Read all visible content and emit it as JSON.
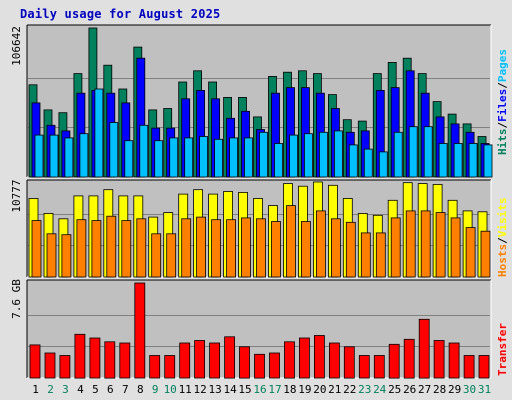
{
  "chart_data": [
    {
      "type": "bar",
      "title": "Daily usage for August 2025",
      "ymax_label": "106642",
      "legend": [
        {
          "name": "Hits",
          "color": "#00805c"
        },
        {
          "name": "Files",
          "color": "#0000ff"
        },
        {
          "name": "Pages",
          "color": "#00c0ff"
        }
      ],
      "categories": [
        "1",
        "2",
        "3",
        "4",
        "5",
        "6",
        "7",
        "8",
        "9",
        "10",
        "11",
        "12",
        "13",
        "14",
        "15",
        "16",
        "17",
        "18",
        "19",
        "20",
        "21",
        "22",
        "23",
        "24",
        "25",
        "26",
        "27",
        "28",
        "29",
        "30",
        "31"
      ],
      "series": [
        {
          "name": "Hits",
          "values": [
            66000,
            48000,
            46000,
            74000,
            106642,
            80000,
            63000,
            93000,
            48000,
            49000,
            68000,
            76000,
            68000,
            57000,
            57000,
            43000,
            72000,
            75000,
            76000,
            74000,
            59000,
            41000,
            40000,
            74000,
            82000,
            85000,
            74000,
            54000,
            45000,
            38000,
            29000
          ]
        },
        {
          "name": "Files",
          "values": [
            53000,
            37000,
            33000,
            60000,
            62000,
            60000,
            53000,
            85000,
            35000,
            35000,
            56000,
            62000,
            56000,
            42000,
            47000,
            34000,
            60000,
            64000,
            64000,
            60000,
            49000,
            32000,
            33000,
            62000,
            64000,
            76000,
            60000,
            43000,
            38000,
            32000,
            24000
          ]
        },
        {
          "name": "Pages",
          "values": [
            30000,
            30000,
            28000,
            31000,
            63000,
            39000,
            26000,
            37000,
            26000,
            28000,
            28000,
            29000,
            27000,
            28000,
            28000,
            32000,
            24000,
            30000,
            31000,
            32000,
            33000,
            23000,
            20000,
            18000,
            32000,
            36000,
            36000,
            24000,
            24000,
            24000,
            23000
          ]
        }
      ]
    },
    {
      "type": "bar",
      "ymax_label": "10777",
      "legend": [
        {
          "name": "Hosts",
          "color": "#ff8000"
        },
        {
          "name": "Visits",
          "color": "#ffff00"
        }
      ],
      "series": [
        {
          "name": "Visits",
          "values": [
            8900,
            7200,
            6600,
            9200,
            9200,
            9900,
            9200,
            9200,
            6800,
            7300,
            9400,
            9900,
            9400,
            9700,
            9600,
            8900,
            8100,
            10600,
            10300,
            10777,
            10400,
            8900,
            7200,
            7000,
            8700,
            10700,
            10600,
            10500,
            8700,
            7500,
            7400
          ]
        },
        {
          "name": "Hosts",
          "values": [
            6400,
            4900,
            4800,
            6500,
            6400,
            6900,
            6400,
            6600,
            4900,
            4900,
            6600,
            6800,
            6500,
            6500,
            6700,
            6600,
            6300,
            8100,
            6300,
            7500,
            6600,
            6200,
            5000,
            5000,
            6700,
            7500,
            7500,
            7300,
            6700,
            5600,
            5200
          ]
        }
      ]
    },
    {
      "type": "bar",
      "ymax_label": "7.6 GB",
      "legend": [
        {
          "name": "Transfer",
          "color": "#ff0000"
        }
      ],
      "series": [
        {
          "name": "Transfer",
          "values": [
            2.65,
            2.0,
            1.8,
            3.5,
            3.2,
            2.9,
            2.8,
            7.6,
            1.8,
            1.8,
            2.8,
            3.0,
            2.8,
            3.3,
            2.5,
            1.9,
            2.0,
            2.9,
            3.2,
            3.4,
            2.8,
            2.5,
            1.8,
            1.8,
            2.7,
            3.1,
            4.7,
            3.0,
            2.8,
            1.8,
            1.8
          ]
        }
      ]
    }
  ],
  "day_label_colors": {
    "weekday": "#000000",
    "weekend": "#00805c"
  },
  "weekend_days": [
    2,
    3,
    9,
    10,
    16,
    17,
    23,
    24,
    30,
    31
  ]
}
